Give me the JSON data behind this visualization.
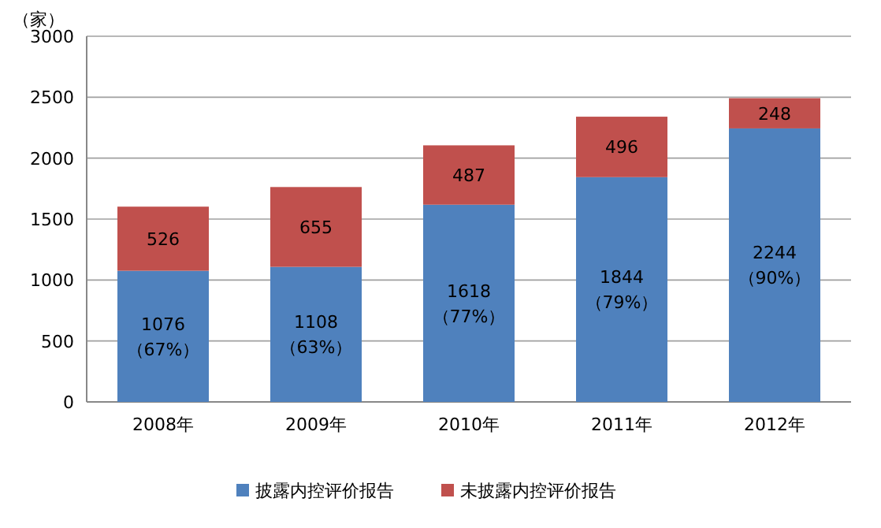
{
  "chart_data": {
    "type": "bar",
    "stacked": true,
    "ylabel": "（家）",
    "categories": [
      "2008年",
      "2009年",
      "2010年",
      "2011年",
      "2012年"
    ],
    "series": [
      {
        "name": "披露内控评价报告",
        "color": "#4f81bd",
        "values": [
          1076,
          1108,
          1618,
          1844,
          2244
        ],
        "value_labels": [
          "1076（67%）",
          "1108（63%）",
          "1618（77%）",
          "1844（79%）",
          "2244（90%）"
        ]
      },
      {
        "name": "未披露内控评价报告",
        "color": "#c0504d",
        "values": [
          526,
          655,
          487,
          496,
          248
        ],
        "value_labels": [
          "526",
          "655",
          "487",
          "496",
          "248"
        ]
      }
    ],
    "ylim": [
      0,
      3000
    ],
    "yticks": [
      0,
      500,
      1000,
      1500,
      2000,
      2500,
      3000
    ],
    "grid": "y",
    "legend": "bottom"
  }
}
